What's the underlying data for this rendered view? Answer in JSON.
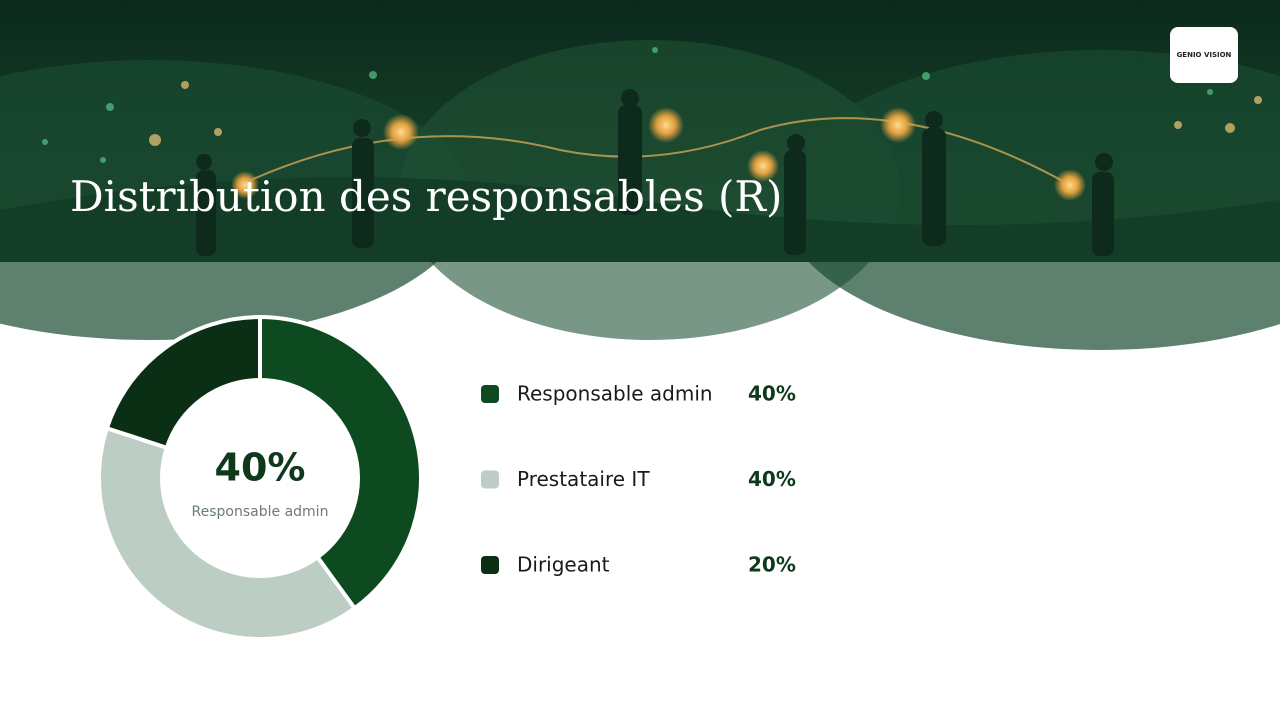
{
  "logo": "GENIO VISION",
  "chart_data": {
    "type": "donut",
    "title": "Distribution des responsables (R)",
    "categories": [
      "Responsable admin",
      "Prestataire IT",
      "Dirigeant"
    ],
    "values": [
      40,
      40,
      20
    ],
    "value_labels": [
      "40%",
      "40%",
      "20%"
    ],
    "colors": [
      "#0e4a20",
      "#bccdc4",
      "#0b2f14"
    ]
  }
}
